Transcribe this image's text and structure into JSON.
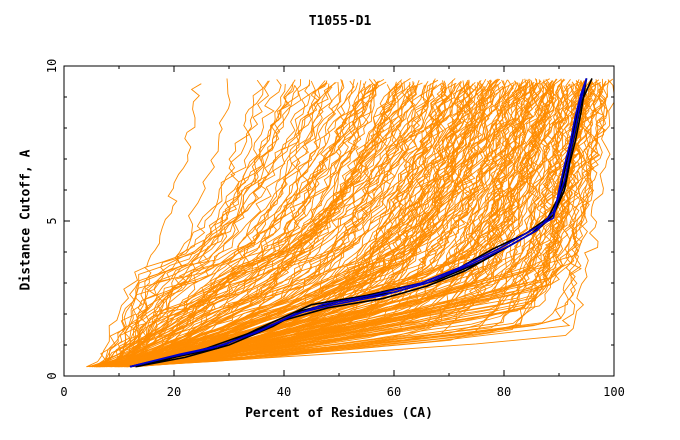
{
  "chart_data": {
    "type": "line",
    "title": "T1055-D1",
    "xlabel": "Percent of Residues (CA)",
    "ylabel": "Distance Cutoff, A",
    "xlim": [
      0,
      100
    ],
    "ylim": [
      0,
      10
    ],
    "x_ticks": [
      "0",
      "20",
      "40",
      "60",
      "80",
      "100"
    ],
    "y_ticks": [
      "0",
      "5",
      "10"
    ],
    "grid": false,
    "legend": "none",
    "colors": {
      "models": "#ff8c00",
      "highlight_black": "#000000",
      "highlight_blue": "#0000cc"
    },
    "highlight_series": [
      {
        "color": "#000000",
        "points": [
          [
            12,
            0.3
          ],
          [
            20,
            0.6
          ],
          [
            28,
            0.9
          ],
          [
            35,
            1.5
          ],
          [
            40,
            1.9
          ],
          [
            45,
            2.3
          ],
          [
            55,
            2.6
          ],
          [
            65,
            3.0
          ],
          [
            72,
            3.5
          ],
          [
            78,
            4.1
          ],
          [
            84,
            4.6
          ],
          [
            88,
            5.1
          ],
          [
            90,
            5.8
          ],
          [
            91,
            6.6
          ],
          [
            92,
            7.4
          ],
          [
            93,
            8.2
          ],
          [
            94,
            9.0
          ],
          [
            95,
            9.6
          ]
        ]
      },
      {
        "color": "#000000",
        "points": [
          [
            12,
            0.3
          ],
          [
            18,
            0.5
          ],
          [
            26,
            0.9
          ],
          [
            34,
            1.4
          ],
          [
            40,
            1.8
          ],
          [
            48,
            2.2
          ],
          [
            58,
            2.5
          ],
          [
            66,
            2.9
          ],
          [
            73,
            3.4
          ],
          [
            80,
            4.1
          ],
          [
            85,
            4.6
          ],
          [
            89,
            5.2
          ],
          [
            91,
            6.0
          ],
          [
            92,
            6.9
          ],
          [
            93,
            7.6
          ],
          [
            94,
            8.5
          ],
          [
            95,
            9.6
          ]
        ]
      },
      {
        "color": "#000000",
        "points": [
          [
            13,
            0.3
          ],
          [
            22,
            0.6
          ],
          [
            30,
            1.0
          ],
          [
            38,
            1.6
          ],
          [
            43,
            2.1
          ],
          [
            50,
            2.4
          ],
          [
            60,
            2.7
          ],
          [
            68,
            3.1
          ],
          [
            76,
            3.7
          ],
          [
            82,
            4.3
          ],
          [
            86,
            4.7
          ],
          [
            89,
            5.2
          ],
          [
            91,
            6.2
          ],
          [
            92,
            7.1
          ],
          [
            93,
            7.9
          ],
          [
            94,
            8.8
          ],
          [
            96,
            9.6
          ]
        ]
      },
      {
        "color": "#0000cc",
        "points": [
          [
            12,
            0.3
          ],
          [
            19,
            0.6
          ],
          [
            27,
            0.9
          ],
          [
            35,
            1.4
          ],
          [
            41,
            1.9
          ],
          [
            47,
            2.3
          ],
          [
            56,
            2.6
          ],
          [
            65,
            3.0
          ],
          [
            72,
            3.5
          ],
          [
            79,
            4.1
          ],
          [
            85,
            4.7
          ],
          [
            89,
            5.1
          ],
          [
            90,
            6.0
          ],
          [
            91,
            6.8
          ],
          [
            92,
            7.5
          ],
          [
            93,
            8.4
          ],
          [
            94,
            9.1
          ],
          [
            95,
            9.6
          ]
        ]
      },
      {
        "color": "#0000cc",
        "points": [
          [
            12,
            0.3
          ],
          [
            21,
            0.7
          ],
          [
            29,
            1.0
          ],
          [
            36,
            1.5
          ],
          [
            42,
            2.0
          ],
          [
            49,
            2.3
          ],
          [
            58,
            2.6
          ],
          [
            66,
            3.0
          ],
          [
            74,
            3.6
          ],
          [
            81,
            4.2
          ],
          [
            86,
            4.7
          ],
          [
            89,
            5.3
          ],
          [
            91,
            6.3
          ],
          [
            92,
            7.2
          ],
          [
            93,
            8.0
          ],
          [
            94,
            8.9
          ],
          [
            95,
            9.6
          ]
        ]
      }
    ]
  }
}
